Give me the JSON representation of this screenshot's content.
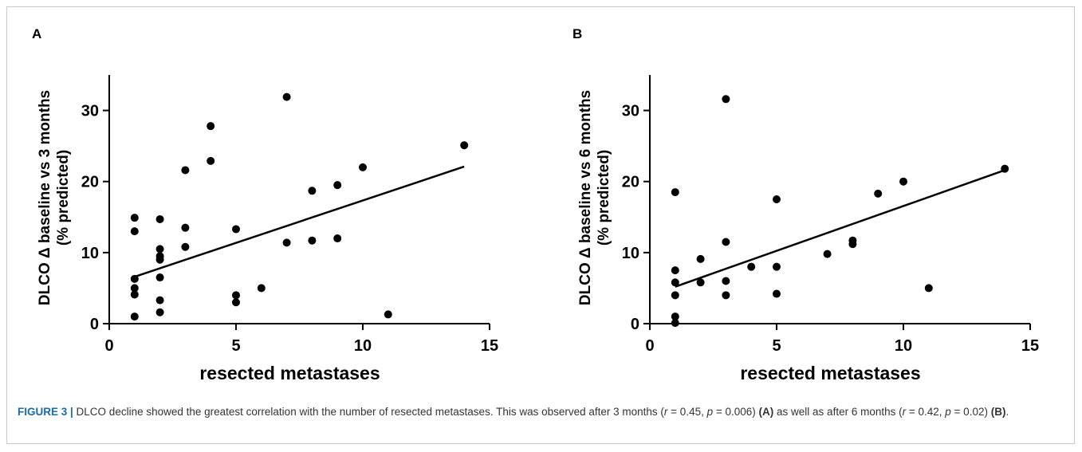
{
  "chart_data": [
    {
      "type": "scatter",
      "panel_label": "A",
      "xlabel": "resected metastases",
      "ylabel_line1": "DLCO Δ baseline vs 3 months",
      "ylabel_line2": "(% predicted)",
      "xlim": [
        0,
        15
      ],
      "ylim": [
        0,
        35
      ],
      "xticks": [
        0,
        5,
        10,
        15
      ],
      "yticks": [
        0,
        10,
        20,
        30
      ],
      "grid": false,
      "points": [
        [
          1,
          14.9
        ],
        [
          1,
          13.0
        ],
        [
          1,
          6.3
        ],
        [
          1,
          5.0
        ],
        [
          1,
          4.1
        ],
        [
          1,
          1.0
        ],
        [
          2,
          14.7
        ],
        [
          2,
          10.5
        ],
        [
          2,
          9.5
        ],
        [
          2,
          9.0
        ],
        [
          2,
          6.5
        ],
        [
          2,
          3.3
        ],
        [
          2,
          1.6
        ],
        [
          3,
          21.6
        ],
        [
          3,
          13.5
        ],
        [
          3,
          10.8
        ],
        [
          4,
          27.8
        ],
        [
          4,
          22.9
        ],
        [
          5,
          13.3
        ],
        [
          5,
          4.0
        ],
        [
          5,
          3.0
        ],
        [
          6,
          5.0
        ],
        [
          7,
          31.9
        ],
        [
          7,
          11.4
        ],
        [
          8,
          18.7
        ],
        [
          8,
          11.7
        ],
        [
          9,
          19.5
        ],
        [
          9,
          12.0
        ],
        [
          10,
          22.0
        ],
        [
          11,
          1.3
        ],
        [
          14,
          25.1
        ]
      ],
      "fit_line": [
        [
          1,
          6.6
        ],
        [
          14,
          22.1
        ]
      ]
    },
    {
      "type": "scatter",
      "panel_label": "B",
      "xlabel": "resected metastases",
      "ylabel_line1": "DLCO Δ baseline vs 6 months",
      "ylabel_line2": "(% predicted)",
      "xlim": [
        0,
        15
      ],
      "ylim": [
        0,
        35
      ],
      "xticks": [
        0,
        5,
        10,
        15
      ],
      "yticks": [
        0,
        10,
        20,
        30
      ],
      "grid": false,
      "points": [
        [
          1,
          18.5
        ],
        [
          1,
          7.5
        ],
        [
          1,
          5.8
        ],
        [
          1,
          4.0
        ],
        [
          1,
          1.0
        ],
        [
          1,
          0.1
        ],
        [
          2,
          9.1
        ],
        [
          2,
          5.8
        ],
        [
          3,
          31.6
        ],
        [
          3,
          11.5
        ],
        [
          3,
          6.0
        ],
        [
          3,
          4.0
        ],
        [
          4,
          8.0
        ],
        [
          5,
          17.5
        ],
        [
          5,
          8.0
        ],
        [
          5,
          4.2
        ],
        [
          7,
          9.8
        ],
        [
          8,
          11.7
        ],
        [
          8,
          11.2
        ],
        [
          9,
          18.3
        ],
        [
          10,
          20.0
        ],
        [
          11,
          5.0
        ],
        [
          14,
          21.8
        ]
      ],
      "fit_line": [
        [
          1,
          5.2
        ],
        [
          14,
          21.6
        ]
      ]
    }
  ],
  "caption": {
    "figure_label": "FIGURE 3 |",
    "text_1": " DLCO decline showed the greatest correlation with the number of resected metastases. This was observed after 3 months (",
    "r_1_var": "r",
    "r_1_val": " = 0.45, ",
    "p_1_var": "p",
    "p_1_val": " = 0.006) ",
    "ref_a": "(A)",
    "text_2": " as well as after 6 months (",
    "r_2_var": "r",
    "r_2_val": " = 0.42, ",
    "p_2_var": "p",
    "p_2_val": " = 0.02) ",
    "ref_b": "(B)",
    "text_end": "."
  }
}
